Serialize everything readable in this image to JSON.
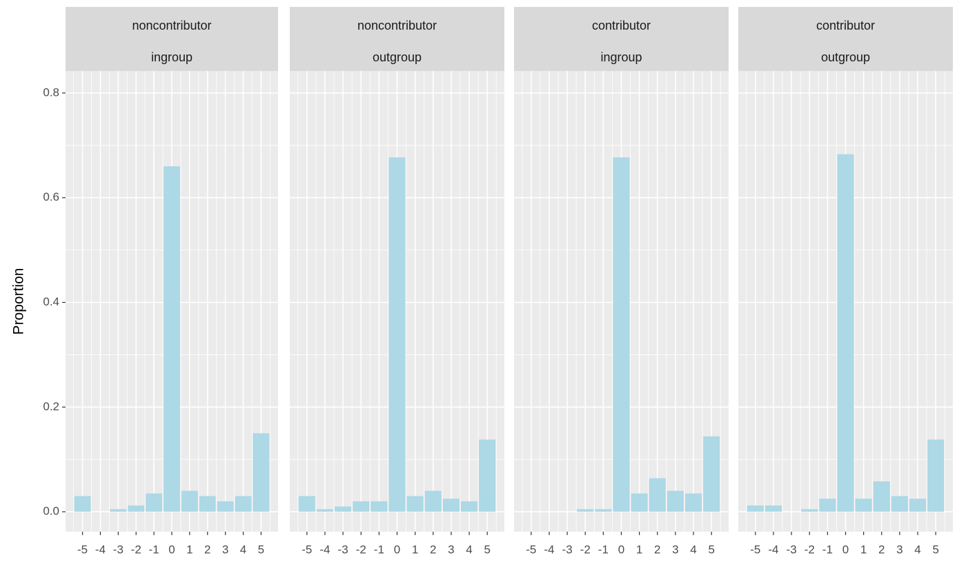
{
  "chart_data": [
    {
      "type": "bar",
      "strip": [
        "noncontributor",
        "ingroup"
      ],
      "ylabel": "Proportion",
      "categories": [
        "-5",
        "-4",
        "-3",
        "-2",
        "-1",
        "0",
        "1",
        "2",
        "3",
        "4",
        "5"
      ],
      "values": [
        0.03,
        0,
        0.005,
        0.012,
        0.035,
        0.66,
        0.04,
        0.03,
        0.02,
        0.03,
        0.15
      ],
      "color": "#add8e6",
      "ylim": [
        -0.038,
        0.842
      ],
      "yticks": [
        {
          "value": 0,
          "label": "0.0"
        },
        0.2,
        0.4,
        0.6,
        0.8
      ],
      "grid": true
    },
    {
      "type": "bar",
      "strip": [
        "noncontributor",
        "outgroup"
      ],
      "categories": [
        "-5",
        "-4",
        "-3",
        "-2",
        "-1",
        "0",
        "1",
        "2",
        "3",
        "4",
        "5"
      ],
      "values": [
        0.03,
        0.005,
        0.01,
        0.02,
        0.02,
        0.677,
        0.03,
        0.04,
        0.025,
        0.02,
        0.138
      ],
      "color": "#add8e6",
      "ylim": [
        -0.038,
        0.842
      ],
      "yticks": [
        {
          "value": 0,
          "label": "0.0"
        },
        0.2,
        0.4,
        0.6,
        0.8
      ],
      "grid": true
    },
    {
      "type": "bar",
      "strip": [
        "contributor",
        "ingroup"
      ],
      "categories": [
        "-5",
        "-4",
        "-3",
        "-2",
        "-1",
        "0",
        "1",
        "2",
        "3",
        "4",
        "5"
      ],
      "values": [
        0,
        0,
        0,
        0.005,
        0.005,
        0.677,
        0.035,
        0.064,
        0.04,
        0.035,
        0.144
      ],
      "color": "#add8e6",
      "ylim": [
        -0.038,
        0.842
      ],
      "yticks": [
        {
          "value": 0,
          "label": "0.0"
        },
        0.2,
        0.4,
        0.6,
        0.8
      ],
      "grid": true
    },
    {
      "type": "bar",
      "strip": [
        "contributor",
        "outgroup"
      ],
      "categories": [
        "-5",
        "-4",
        "-3",
        "-2",
        "-1",
        "0",
        "1",
        "2",
        "3",
        "4",
        "5"
      ],
      "values": [
        0.012,
        0.012,
        0,
        0.005,
        0.025,
        0.683,
        0.025,
        0.058,
        0.03,
        0.025,
        0.138
      ],
      "color": "#add8e6",
      "ylim": [
        -0.038,
        0.842
      ],
      "yticks": [
        {
          "value": 0,
          "label": "0.0"
        },
        0.2,
        0.4,
        0.6,
        0.8
      ],
      "grid": true
    }
  ]
}
